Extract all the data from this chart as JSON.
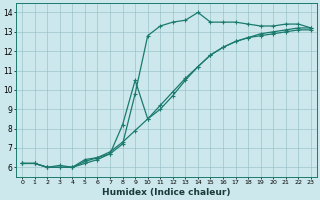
{
  "xlabel": "Humidex (Indice chaleur)",
  "bg_color": "#cce8ec",
  "line_color": "#1a7a6e",
  "xlim": [
    -0.5,
    23.5
  ],
  "ylim": [
    5.5,
    14.5
  ],
  "xticks": [
    0,
    1,
    2,
    3,
    4,
    5,
    6,
    7,
    8,
    9,
    10,
    11,
    12,
    13,
    14,
    15,
    16,
    17,
    18,
    19,
    20,
    21,
    22,
    23
  ],
  "yticks": [
    6,
    7,
    8,
    9,
    10,
    11,
    12,
    13,
    14
  ],
  "line1_x": [
    0,
    1,
    2,
    3,
    4,
    5,
    6,
    7,
    8,
    9,
    10,
    11,
    12,
    13,
    14,
    15,
    16,
    17,
    18,
    19,
    20,
    21,
    22,
    23
  ],
  "line1_y": [
    6.2,
    6.2,
    6.0,
    6.1,
    6.0,
    6.4,
    6.5,
    6.7,
    7.2,
    9.8,
    12.8,
    13.3,
    13.5,
    13.6,
    14.0,
    13.5,
    13.5,
    13.5,
    13.4,
    13.3,
    13.3,
    13.4,
    13.4,
    13.2
  ],
  "line2_x": [
    0,
    1,
    2,
    3,
    4,
    5,
    6,
    7,
    8,
    9,
    10,
    11,
    12,
    13,
    14,
    15,
    16,
    17,
    18,
    19,
    20,
    21,
    22,
    23
  ],
  "line2_y": [
    6.2,
    6.2,
    6.0,
    6.0,
    6.0,
    6.3,
    6.5,
    6.8,
    7.3,
    7.9,
    8.5,
    9.2,
    9.9,
    10.6,
    11.2,
    11.8,
    12.2,
    12.5,
    12.7,
    12.9,
    13.0,
    13.1,
    13.2,
    13.2
  ],
  "line3_x": [
    0,
    1,
    2,
    3,
    4,
    5,
    6,
    7,
    8,
    9,
    10,
    11,
    12,
    13,
    14,
    15,
    16,
    17,
    18,
    19,
    20,
    21,
    22,
    23
  ],
  "line3_y": [
    6.2,
    6.2,
    6.0,
    6.0,
    6.0,
    6.2,
    6.4,
    6.7,
    8.2,
    10.5,
    8.5,
    9.0,
    9.7,
    10.5,
    11.2,
    11.8,
    12.2,
    12.5,
    12.7,
    12.8,
    12.9,
    13.0,
    13.1,
    13.1
  ]
}
